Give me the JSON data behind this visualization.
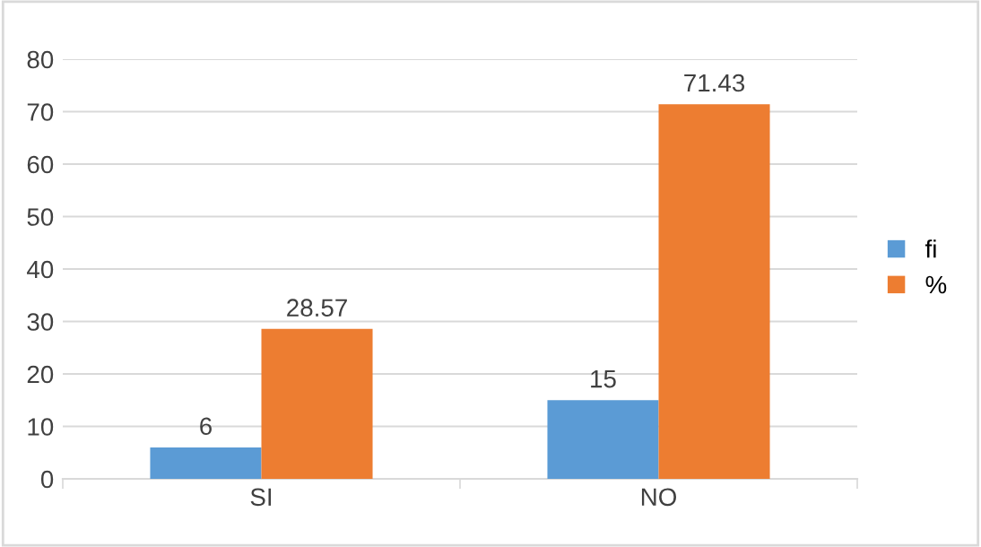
{
  "chart_data": {
    "type": "bar",
    "categories": [
      "SI",
      "NO"
    ],
    "series": [
      {
        "name": "fi",
        "color": "#5b9bd5",
        "values": [
          6,
          15
        ]
      },
      {
        "name": "%",
        "color": "#ed7d31",
        "values": [
          28.57,
          71.43
        ]
      }
    ],
    "ylim": [
      0,
      80
    ],
    "yticks": [
      0,
      10,
      20,
      30,
      40,
      50,
      60,
      70,
      80
    ],
    "grid": "y",
    "legend": "right",
    "data_labels": true
  }
}
